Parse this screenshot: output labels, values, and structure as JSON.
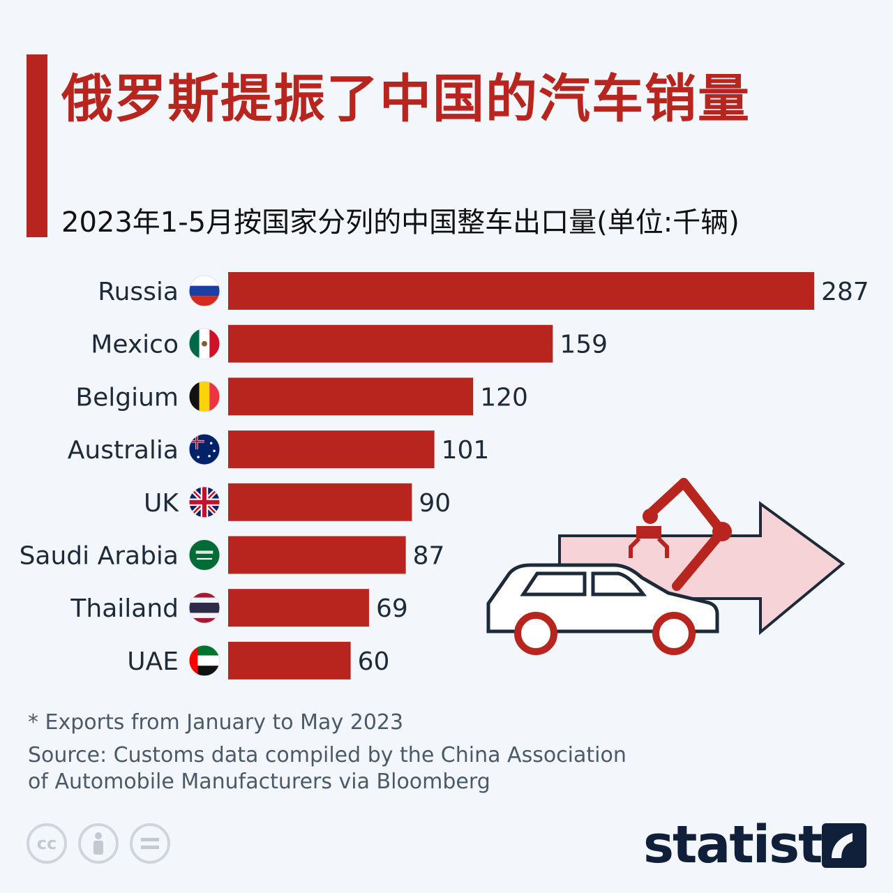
{
  "title": "俄罗斯提振了中国的汽车销量",
  "subtitle": "2023年1-5月按国家分列的中国整车出口量(单位:千辆)",
  "footnote": "* Exports from January to May 2023",
  "source_line1": "Source: Customs data compiled by the China Association",
  "source_line2": "of Automobile Manufacturers via Bloomberg",
  "brand": "statista",
  "license_icons": [
    "cc-icon",
    "attribution-icon",
    "no-derivatives-icon"
  ],
  "colors": {
    "accent": "#b8251e",
    "text": "#1d2a3a",
    "muted": "#4b5a6b",
    "arrow": "#f6d3d6",
    "brand": "#10203a"
  },
  "chart_data": {
    "type": "bar",
    "orientation": "horizontal",
    "categories": [
      "Russia",
      "Mexico",
      "Belgium",
      "Australia",
      "UK",
      "Saudi Arabia",
      "Thailand",
      "UAE"
    ],
    "values": [
      287,
      159,
      120,
      101,
      90,
      87,
      69,
      60
    ],
    "flags": [
      "russia-flag-icon",
      "mexico-flag-icon",
      "belgium-flag-icon",
      "australia-flag-icon",
      "uk-flag-icon",
      "saudi-arabia-flag-icon",
      "thailand-flag-icon",
      "uae-flag-icon"
    ],
    "title": "2023年1-5月按国家分列的中国整车出口量(单位:千辆)",
    "xlim": [
      0,
      287
    ],
    "grid": false,
    "legend": "none"
  }
}
